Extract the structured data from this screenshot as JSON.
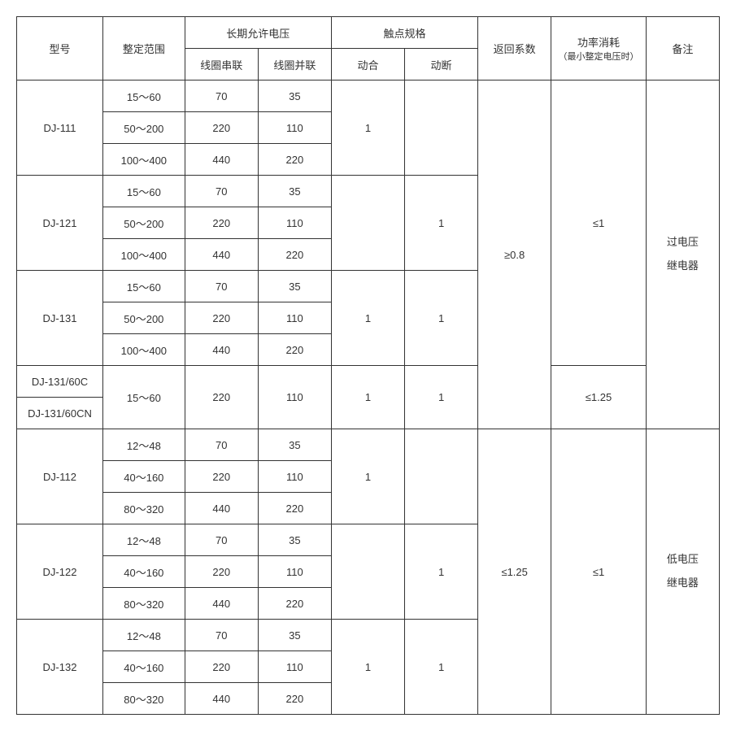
{
  "headers": {
    "model": "型号",
    "range": "整定范围",
    "longterm_voltage": "长期允许电压",
    "coil_series": "线圈串联",
    "coil_parallel": "线圈并联",
    "contact_spec": "触点规格",
    "contact_close": "动合",
    "contact_open": "动断",
    "return_coef": "返回系数",
    "power": "功率消耗",
    "power_sub": "（最小整定电压时）",
    "remark": "备注"
  },
  "models": {
    "dj111": "DJ-111",
    "dj121": "DJ-121",
    "dj131": "DJ-131",
    "dj131_60c": "DJ-131/60C",
    "dj131_60cn": "DJ-131/60CN",
    "dj112": "DJ-112",
    "dj122": "DJ-122",
    "dj132": "DJ-132"
  },
  "ranges": {
    "r15_60": "15～60",
    "r50_200": "50～200",
    "r100_400": "100～400",
    "r12_48": "12～48",
    "r40_160": "40～160",
    "r80_320": "80～320"
  },
  "volts": {
    "v70": "70",
    "v35": "35",
    "v220": "220",
    "v110": "110",
    "v440": "440",
    "v220b": "220"
  },
  "contacts": {
    "c1": "1"
  },
  "coef": {
    "ge08": "≥0.8",
    "le125": "≤1.25"
  },
  "power": {
    "le1": "≤1",
    "le125": "≤1.25"
  },
  "remarks": {
    "overvoltage": "过电压<br>继电器",
    "undervoltage": "低电压<br>继电器"
  },
  "colwidths": {
    "model": 100,
    "range": 95,
    "series": 85,
    "parallel": 85,
    "close": 85,
    "open": 85,
    "coef": 85,
    "power": 110,
    "remark": 85
  }
}
